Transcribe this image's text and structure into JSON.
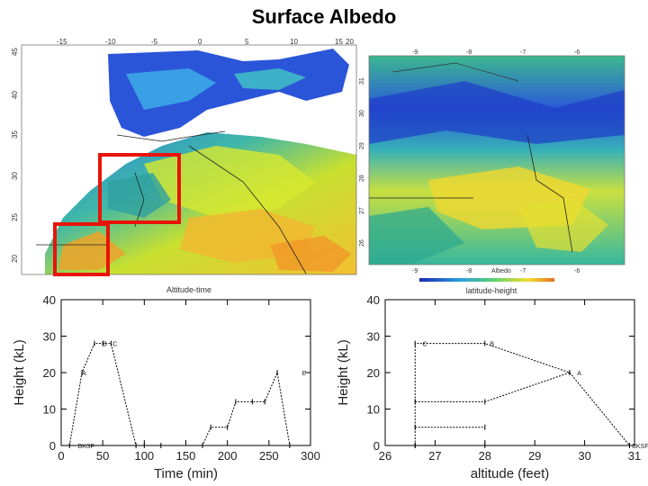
{
  "title": "Surface Albedo",
  "maps": {
    "left": {
      "top_ticks": [
        "-15",
        "-10",
        "-5",
        "0",
        "5",
        "10",
        "15",
        "20"
      ],
      "left_ticks": [
        "45",
        "40",
        "35",
        "30",
        "25",
        "20"
      ],
      "caption": "Altitude-time"
    },
    "right": {
      "top_ticks": [
        "-9",
        "-8",
        "-7",
        "-6"
      ],
      "left_ticks": [
        "31",
        "30",
        "29",
        "28",
        "27",
        "26"
      ],
      "bottom_ticks": [
        "-9",
        "-8",
        "-7",
        "-6"
      ],
      "inner_label": "Albedo",
      "caption": "latitude-height"
    },
    "colors": {
      "highlight_box": "#e8140a"
    }
  },
  "chart_data": [
    {
      "type": "line",
      "xlabel": "Time (min)",
      "ylabel": "Height (kL)",
      "xlim": [
        0,
        300
      ],
      "ylim": [
        0,
        40
      ],
      "x_ticks": [
        "0",
        "50",
        "100",
        "150",
        "200",
        "250",
        "300"
      ],
      "y_ticks": [
        "0",
        "10",
        "20",
        "30",
        "40"
      ],
      "series": [
        {
          "x": [
            10,
            25,
            40,
            50,
            60,
            90,
            100,
            120,
            170,
            180,
            200,
            210,
            230,
            245,
            260,
            275
          ],
          "y": [
            0,
            20,
            28,
            28,
            28,
            0,
            0,
            0,
            0,
            5,
            5,
            12,
            12,
            12,
            20,
            0
          ]
        }
      ],
      "annotations": [
        {
          "text": "BKSF",
          "x": 20,
          "y": 0
        },
        {
          "text": "A",
          "x": 25,
          "y": 20
        },
        {
          "text": "B",
          "x": 50,
          "y": 28
        },
        {
          "text": "C",
          "x": 62,
          "y": 28
        },
        {
          "text": "E",
          "x": 290,
          "y": 20
        }
      ]
    },
    {
      "type": "line",
      "xlabel": "altitude (feet)",
      "ylabel": "Height (kL)",
      "xlim": [
        26,
        31
      ],
      "ylim": [
        0,
        40
      ],
      "x_ticks": [
        "26",
        "27",
        "28",
        "29",
        "30",
        "31"
      ],
      "y_ticks": [
        "0",
        "10",
        "20",
        "30",
        "40"
      ],
      "series": [
        {
          "x": [
            26.6,
            26.6,
            28.0,
            29.7,
            30.9
          ],
          "y": [
            0,
            28,
            28,
            20,
            0
          ]
        },
        {
          "x": [
            26.6,
            28.0,
            29.7
          ],
          "y": [
            12,
            12,
            20
          ]
        },
        {
          "x": [
            26.6,
            28.0
          ],
          "y": [
            5,
            5
          ]
        },
        {
          "x": [
            26.6,
            28.0
          ],
          "y": [
            0,
            0
          ]
        }
      ],
      "annotations": [
        {
          "text": "C",
          "x": 26.75,
          "y": 28
        },
        {
          "text": "B",
          "x": 28.1,
          "y": 28
        },
        {
          "text": "A",
          "x": 29.85,
          "y": 20
        },
        {
          "text": "BKSF",
          "x": 30.95,
          "y": 0
        }
      ]
    }
  ]
}
